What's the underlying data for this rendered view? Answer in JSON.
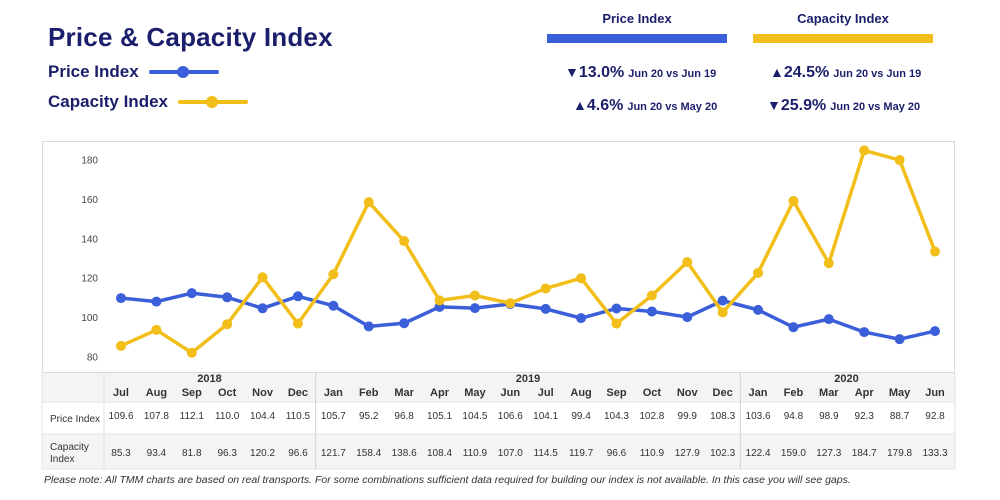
{
  "title": "Price & Capacity Index",
  "legend": [
    {
      "label": "Price Index",
      "color": "#3a5fd9"
    },
    {
      "label": "Capacity Index",
      "color": "#f2be1a"
    }
  ],
  "kpis": {
    "price": {
      "header": "Price Index",
      "color": "#3a5fd9",
      "rows": [
        {
          "arrow": "▼",
          "pct": "13.0%",
          "cmp": "Jun 20 vs Jun 19"
        },
        {
          "arrow": "▲",
          "pct": "4.6%",
          "cmp": "Jun 20 vs May 20"
        }
      ]
    },
    "capacity": {
      "header": "Capacity Index",
      "color": "#f2be1a",
      "rows": [
        {
          "arrow": "▲",
          "pct": "24.5%",
          "cmp": "Jun 20 vs Jun 19"
        },
        {
          "arrow": "▼",
          "pct": "25.9%",
          "cmp": "Jun 20 vs May 20"
        }
      ]
    }
  },
  "chart_data": {
    "type": "line",
    "categories": [
      "Jul",
      "Aug",
      "Sep",
      "Oct",
      "Nov",
      "Dec",
      "Jan",
      "Feb",
      "Mar",
      "Apr",
      "May",
      "Jun",
      "Jul",
      "Aug",
      "Sep",
      "Oct",
      "Nov",
      "Dec",
      "Jan",
      "Feb",
      "Mar",
      "Apr",
      "May",
      "Jun"
    ],
    "year_groups": [
      {
        "label": "2018",
        "start": 0,
        "end": 5
      },
      {
        "label": "2019",
        "start": 6,
        "end": 17
      },
      {
        "label": "2020",
        "start": 18,
        "end": 23
      }
    ],
    "series": [
      {
        "name": "Price Index",
        "table_label": "Price Index",
        "color": "#3a5fd9",
        "values": [
          109.6,
          107.8,
          112.1,
          110.0,
          104.4,
          110.5,
          105.7,
          95.2,
          96.8,
          105.1,
          104.5,
          106.6,
          104.1,
          99.4,
          104.3,
          102.8,
          99.9,
          108.3,
          103.6,
          94.8,
          98.9,
          92.3,
          88.7,
          92.8
        ]
      },
      {
        "name": "Capacity Index",
        "table_label": "Capacity Index",
        "color": "#f2be1a",
        "values": [
          85.3,
          93.4,
          81.8,
          96.3,
          120.2,
          96.6,
          121.7,
          158.4,
          138.6,
          108.4,
          110.9,
          107.0,
          114.5,
          119.7,
          96.6,
          110.9,
          127.9,
          102.3,
          122.4,
          159.0,
          127.3,
          184.7,
          179.8,
          133.3
        ]
      }
    ],
    "yticks": [
      80,
      100,
      120,
      140,
      160,
      180
    ],
    "ylim": [
      72,
      190
    ],
    "grid": false
  },
  "note": "Please note: All TMM charts are based on real transports. For some combinations sufficient data required for building our index is not available. In this case you will see gaps."
}
